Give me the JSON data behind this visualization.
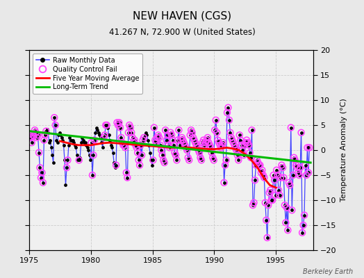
{
  "title": "NEW HAVEN (CGS)",
  "subtitle": "41.267 N, 72.900 W (United States)",
  "ylabel": "Temperature Anomaly (°C)",
  "attribution": "Berkeley Earth",
  "xlim": [
    1975,
    1998
  ],
  "ylim": [
    -20,
    20
  ],
  "yticks": [
    -20,
    -15,
    -10,
    -5,
    0,
    5,
    10,
    15,
    20
  ],
  "xticks": [
    1975,
    1980,
    1985,
    1990,
    1995
  ],
  "fig_facecolor": "#e8e8e8",
  "plot_facecolor": "#f0f0f0",
  "raw_color": "#4444ff",
  "dot_color": "#000000",
  "qc_color": "#ff44ff",
  "moving_avg_color": "#ff0000",
  "trend_color": "#00bb00",
  "grid_color": "#cccccc",
  "raw_monthly": [
    [
      1975.042,
      3.2
    ],
    [
      1975.125,
      2.5
    ],
    [
      1975.208,
      1.5
    ],
    [
      1975.292,
      3.0
    ],
    [
      1975.375,
      2.8
    ],
    [
      1975.458,
      4.0
    ],
    [
      1975.542,
      3.5
    ],
    [
      1975.625,
      2.5
    ],
    [
      1975.708,
      3.0
    ],
    [
      1975.792,
      -0.5
    ],
    [
      1975.875,
      -3.5
    ],
    [
      1975.958,
      -5.5
    ],
    [
      1976.042,
      -4.5
    ],
    [
      1976.125,
      -6.5
    ],
    [
      1976.208,
      2.0
    ],
    [
      1976.292,
      3.0
    ],
    [
      1976.375,
      3.8
    ],
    [
      1976.458,
      4.2
    ],
    [
      1976.542,
      3.5
    ],
    [
      1976.625,
      1.5
    ],
    [
      1976.708,
      2.0
    ],
    [
      1976.792,
      0.5
    ],
    [
      1976.875,
      -1.0
    ],
    [
      1976.958,
      -2.5
    ],
    [
      1977.042,
      6.5
    ],
    [
      1977.125,
      5.0
    ],
    [
      1977.208,
      2.0
    ],
    [
      1977.292,
      1.5
    ],
    [
      1977.375,
      3.0
    ],
    [
      1977.458,
      3.5
    ],
    [
      1977.542,
      3.0
    ],
    [
      1977.625,
      2.5
    ],
    [
      1977.708,
      2.0
    ],
    [
      1977.792,
      1.0
    ],
    [
      1977.875,
      -2.0
    ],
    [
      1977.958,
      -7.0
    ],
    [
      1978.042,
      -3.5
    ],
    [
      1978.125,
      -2.0
    ],
    [
      1978.208,
      1.0
    ],
    [
      1978.292,
      2.5
    ],
    [
      1978.375,
      2.0
    ],
    [
      1978.458,
      2.0
    ],
    [
      1978.542,
      2.0
    ],
    [
      1978.625,
      1.5
    ],
    [
      1978.708,
      1.0
    ],
    [
      1978.792,
      0.5
    ],
    [
      1978.875,
      -1.0
    ],
    [
      1978.958,
      -2.0
    ],
    [
      1979.042,
      -2.0
    ],
    [
      1979.125,
      -1.5
    ],
    [
      1979.208,
      1.5
    ],
    [
      1979.292,
      2.5
    ],
    [
      1979.375,
      2.0
    ],
    [
      1979.458,
      1.5
    ],
    [
      1979.542,
      1.5
    ],
    [
      1979.625,
      1.0
    ],
    [
      1979.708,
      0.5
    ],
    [
      1979.792,
      0.0
    ],
    [
      1979.875,
      -1.0
    ],
    [
      1979.958,
      -2.0
    ],
    [
      1980.042,
      1.5
    ],
    [
      1980.125,
      -5.0
    ],
    [
      1980.208,
      -1.0
    ],
    [
      1980.292,
      2.0
    ],
    [
      1980.375,
      3.5
    ],
    [
      1980.458,
      4.5
    ],
    [
      1980.542,
      4.0
    ],
    [
      1980.625,
      3.5
    ],
    [
      1980.708,
      3.0
    ],
    [
      1980.792,
      2.5
    ],
    [
      1980.875,
      1.5
    ],
    [
      1980.958,
      0.5
    ],
    [
      1981.042,
      2.5
    ],
    [
      1981.125,
      3.0
    ],
    [
      1981.208,
      5.0
    ],
    [
      1981.292,
      5.0
    ],
    [
      1981.375,
      4.5
    ],
    [
      1981.458,
      3.0
    ],
    [
      1981.542,
      2.0
    ],
    [
      1981.625,
      1.0
    ],
    [
      1981.708,
      0.5
    ],
    [
      1981.792,
      -0.5
    ],
    [
      1981.875,
      -2.5
    ],
    [
      1981.958,
      -3.5
    ],
    [
      1982.042,
      -3.0
    ],
    [
      1982.125,
      5.5
    ],
    [
      1982.208,
      5.0
    ],
    [
      1982.292,
      5.5
    ],
    [
      1982.375,
      4.5
    ],
    [
      1982.458,
      2.5
    ],
    [
      1982.542,
      1.5
    ],
    [
      1982.625,
      1.0
    ],
    [
      1982.708,
      1.0
    ],
    [
      1982.792,
      0.5
    ],
    [
      1982.875,
      -4.5
    ],
    [
      1982.958,
      -5.5
    ],
    [
      1983.042,
      3.5
    ],
    [
      1983.125,
      5.0
    ],
    [
      1983.208,
      4.5
    ],
    [
      1983.292,
      3.5
    ],
    [
      1983.375,
      2.5
    ],
    [
      1983.458,
      1.5
    ],
    [
      1983.542,
      2.0
    ],
    [
      1983.625,
      1.0
    ],
    [
      1983.708,
      0.5
    ],
    [
      1983.792,
      -0.5
    ],
    [
      1983.875,
      -2.0
    ],
    [
      1983.958,
      -3.0
    ],
    [
      1984.042,
      1.0
    ],
    [
      1984.125,
      -1.0
    ],
    [
      1984.208,
      2.0
    ],
    [
      1984.292,
      2.5
    ],
    [
      1984.375,
      3.0
    ],
    [
      1984.458,
      3.5
    ],
    [
      1984.542,
      3.0
    ],
    [
      1984.625,
      2.0
    ],
    [
      1984.708,
      1.0
    ],
    [
      1984.792,
      -0.5
    ],
    [
      1984.875,
      -2.0
    ],
    [
      1984.958,
      -3.0
    ],
    [
      1985.042,
      -2.0
    ],
    [
      1985.125,
      4.5
    ],
    [
      1985.208,
      2.0
    ],
    [
      1985.292,
      1.5
    ],
    [
      1985.375,
      2.5
    ],
    [
      1985.458,
      3.0
    ],
    [
      1985.542,
      2.5
    ],
    [
      1985.625,
      1.0
    ],
    [
      1985.708,
      0.0
    ],
    [
      1985.792,
      -1.0
    ],
    [
      1985.875,
      -2.0
    ],
    [
      1985.958,
      -2.5
    ],
    [
      1986.042,
      4.0
    ],
    [
      1986.125,
      2.0
    ],
    [
      1986.208,
      3.0
    ],
    [
      1986.292,
      1.0
    ],
    [
      1986.375,
      0.5
    ],
    [
      1986.458,
      3.5
    ],
    [
      1986.542,
      3.0
    ],
    [
      1986.625,
      2.0
    ],
    [
      1986.708,
      1.0
    ],
    [
      1986.792,
      -0.5
    ],
    [
      1986.875,
      -1.0
    ],
    [
      1986.958,
      -2.0
    ],
    [
      1987.042,
      2.0
    ],
    [
      1987.125,
      4.0
    ],
    [
      1987.208,
      1.0
    ],
    [
      1987.292,
      2.0
    ],
    [
      1987.375,
      2.5
    ],
    [
      1987.458,
      2.0
    ],
    [
      1987.542,
      1.5
    ],
    [
      1987.625,
      1.0
    ],
    [
      1987.708,
      0.5
    ],
    [
      1987.792,
      0.0
    ],
    [
      1987.875,
      -1.5
    ],
    [
      1987.958,
      -2.0
    ],
    [
      1988.042,
      3.0
    ],
    [
      1988.125,
      4.0
    ],
    [
      1988.208,
      3.5
    ],
    [
      1988.292,
      2.5
    ],
    [
      1988.375,
      2.0
    ],
    [
      1988.458,
      1.5
    ],
    [
      1988.542,
      1.0
    ],
    [
      1988.625,
      0.5
    ],
    [
      1988.708,
      0.0
    ],
    [
      1988.792,
      -0.5
    ],
    [
      1988.875,
      -1.5
    ],
    [
      1988.958,
      -2.0
    ],
    [
      1989.042,
      1.5
    ],
    [
      1989.125,
      2.0
    ],
    [
      1989.208,
      1.0
    ],
    [
      1989.292,
      1.5
    ],
    [
      1989.375,
      2.0
    ],
    [
      1989.458,
      2.5
    ],
    [
      1989.542,
      1.5
    ],
    [
      1989.625,
      1.0
    ],
    [
      1989.708,
      0.5
    ],
    [
      1989.792,
      -0.5
    ],
    [
      1989.875,
      -1.5
    ],
    [
      1989.958,
      -2.0
    ],
    [
      1990.042,
      4.0
    ],
    [
      1990.125,
      6.0
    ],
    [
      1990.208,
      3.5
    ],
    [
      1990.292,
      2.0
    ],
    [
      1990.375,
      1.5
    ],
    [
      1990.458,
      1.0
    ],
    [
      1990.542,
      0.5
    ],
    [
      1990.625,
      1.0
    ],
    [
      1990.708,
      1.5
    ],
    [
      1990.792,
      -6.5
    ],
    [
      1990.875,
      -3.0
    ],
    [
      1990.958,
      -2.0
    ],
    [
      1991.042,
      7.5
    ],
    [
      1991.125,
      8.5
    ],
    [
      1991.208,
      6.0
    ],
    [
      1991.292,
      3.5
    ],
    [
      1991.375,
      2.5
    ],
    [
      1991.458,
      2.0
    ],
    [
      1991.542,
      1.5
    ],
    [
      1991.625,
      1.0
    ],
    [
      1991.708,
      0.5
    ],
    [
      1991.792,
      0.0
    ],
    [
      1991.875,
      -1.0
    ],
    [
      1991.958,
      -2.0
    ],
    [
      1992.042,
      3.0
    ],
    [
      1992.125,
      2.0
    ],
    [
      1992.208,
      1.0
    ],
    [
      1992.292,
      0.0
    ],
    [
      1992.375,
      -1.0
    ],
    [
      1992.458,
      1.0
    ],
    [
      1992.542,
      1.5
    ],
    [
      1992.625,
      2.0
    ],
    [
      1992.708,
      1.5
    ],
    [
      1992.792,
      1.0
    ],
    [
      1992.875,
      -0.5
    ],
    [
      1992.958,
      -1.5
    ],
    [
      1993.042,
      4.0
    ],
    [
      1993.125,
      -11.0
    ],
    [
      1993.208,
      -10.5
    ],
    [
      1993.292,
      -6.0
    ],
    [
      1993.375,
      -3.0
    ],
    [
      1993.458,
      -2.0
    ],
    [
      1993.542,
      -2.5
    ],
    [
      1993.625,
      -3.0
    ],
    [
      1993.708,
      -3.0
    ],
    [
      1993.792,
      -4.5
    ],
    [
      1993.875,
      -4.0
    ],
    [
      1993.958,
      -5.0
    ],
    [
      1994.042,
      -5.5
    ],
    [
      1994.125,
      -10.5
    ],
    [
      1994.208,
      -14.0
    ],
    [
      1994.292,
      -17.5
    ],
    [
      1994.375,
      -11.0
    ],
    [
      1994.458,
      -8.5
    ],
    [
      1994.542,
      -8.0
    ],
    [
      1994.625,
      -10.0
    ],
    [
      1994.708,
      -10.0
    ],
    [
      1994.792,
      -5.0
    ],
    [
      1994.875,
      -6.0
    ],
    [
      1994.958,
      -9.0
    ],
    [
      1995.042,
      -4.0
    ],
    [
      1995.125,
      -5.0
    ],
    [
      1995.208,
      -8.0
    ],
    [
      1995.292,
      -9.0
    ],
    [
      1995.375,
      -5.5
    ],
    [
      1995.458,
      -3.0
    ],
    [
      1995.542,
      -3.5
    ],
    [
      1995.625,
      -5.5
    ],
    [
      1995.708,
      -11.0
    ],
    [
      1995.792,
      -14.5
    ],
    [
      1995.875,
      -11.5
    ],
    [
      1995.958,
      -16.0
    ],
    [
      1996.042,
      -6.5
    ],
    [
      1996.125,
      -7.0
    ],
    [
      1996.208,
      4.5
    ],
    [
      1996.292,
      -12.0
    ],
    [
      1996.375,
      -5.0
    ],
    [
      1996.458,
      -1.5
    ],
    [
      1996.542,
      -2.0
    ],
    [
      1996.625,
      -3.0
    ],
    [
      1996.708,
      -3.5
    ],
    [
      1996.792,
      -4.5
    ],
    [
      1996.875,
      -5.0
    ],
    [
      1996.958,
      -3.5
    ],
    [
      1997.042,
      3.5
    ],
    [
      1997.125,
      -16.5
    ],
    [
      1997.208,
      -15.0
    ],
    [
      1997.292,
      -13.0
    ],
    [
      1997.375,
      -3.0
    ],
    [
      1997.458,
      -5.0
    ],
    [
      1997.542,
      0.5
    ],
    [
      1997.625,
      -4.5
    ],
    [
      1997.708,
      0.5
    ]
  ],
  "qc_fail_x": [
    1975.042,
    1975.125,
    1975.208,
    1975.292,
    1975.375,
    1975.458,
    1975.542,
    1975.625,
    1975.708,
    1975.792,
    1975.875,
    1975.958,
    1976.042,
    1976.125,
    1976.208,
    1976.292,
    1976.375,
    1977.042,
    1977.125,
    1978.042,
    1978.125,
    1979.042,
    1980.042,
    1980.125,
    1980.208,
    1980.292,
    1981.042,
    1981.125,
    1981.208,
    1981.292,
    1982.042,
    1982.125,
    1982.208,
    1982.292,
    1982.375,
    1982.458,
    1982.542,
    1982.625,
    1982.708,
    1982.792,
    1982.875,
    1982.958,
    1983.042,
    1983.125,
    1983.208,
    1983.292,
    1983.375,
    1983.458,
    1983.542,
    1983.625,
    1983.708,
    1983.792,
    1983.875,
    1983.958,
    1984.042,
    1984.125,
    1984.208,
    1984.292,
    1985.042,
    1985.125,
    1985.208,
    1985.292,
    1985.375,
    1985.458,
    1985.542,
    1985.625,
    1985.708,
    1985.792,
    1985.875,
    1985.958,
    1986.042,
    1986.125,
    1986.208,
    1986.292,
    1986.375,
    1986.458,
    1986.542,
    1986.625,
    1986.708,
    1986.792,
    1986.875,
    1986.958,
    1987.042,
    1987.125,
    1987.208,
    1987.292,
    1987.375,
    1987.458,
    1987.542,
    1987.625,
    1987.708,
    1987.792,
    1987.875,
    1987.958,
    1988.042,
    1988.125,
    1988.208,
    1988.292,
    1988.375,
    1988.458,
    1988.542,
    1988.625,
    1988.708,
    1988.792,
    1988.875,
    1988.958,
    1989.042,
    1989.125,
    1989.208,
    1989.292,
    1989.375,
    1989.458,
    1989.542,
    1989.625,
    1989.708,
    1989.792,
    1989.875,
    1989.958,
    1990.042,
    1990.125,
    1990.208,
    1990.292,
    1990.375,
    1990.458,
    1990.542,
    1990.625,
    1990.708,
    1990.792,
    1990.875,
    1990.958,
    1991.042,
    1991.125,
    1991.208,
    1991.292,
    1991.375,
    1991.458,
    1991.542,
    1991.625,
    1991.708,
    1991.792,
    1991.875,
    1991.958,
    1992.042,
    1992.125,
    1992.208,
    1992.292,
    1992.375,
    1992.458,
    1992.542,
    1992.625,
    1992.708,
    1992.792,
    1992.875,
    1992.958,
    1993.042,
    1993.125,
    1993.208,
    1993.292,
    1993.375,
    1993.458,
    1993.542,
    1993.625,
    1993.708,
    1993.792,
    1993.875,
    1993.958,
    1994.042,
    1994.125,
    1994.208,
    1994.292,
    1994.375,
    1994.458,
    1994.542,
    1994.625,
    1994.708,
    1994.792,
    1994.875,
    1994.958,
    1995.042,
    1995.125,
    1995.208,
    1995.292,
    1995.375,
    1995.458,
    1995.542,
    1995.625,
    1995.708,
    1995.792,
    1995.875,
    1995.958,
    1996.042,
    1996.125,
    1996.208,
    1996.292,
    1996.375,
    1996.458,
    1996.542,
    1996.625,
    1996.708,
    1996.792,
    1996.875,
    1996.958,
    1997.042,
    1997.125,
    1997.208,
    1997.292,
    1997.375,
    1997.458,
    1997.542,
    1997.625,
    1997.708
  ],
  "qc_fail_y": [
    3.2,
    2.5,
    1.5,
    3.0,
    2.8,
    4.0,
    3.5,
    2.5,
    3.0,
    -0.5,
    -3.5,
    -5.5,
    -4.5,
    -6.5,
    2.0,
    3.0,
    3.8,
    6.5,
    5.0,
    -3.5,
    -2.0,
    -2.0,
    1.5,
    -5.0,
    -1.0,
    2.0,
    2.5,
    3.0,
    5.0,
    5.0,
    -3.0,
    5.5,
    5.0,
    5.5,
    4.5,
    2.5,
    1.5,
    1.0,
    1.0,
    0.5,
    -4.5,
    -5.5,
    3.5,
    5.0,
    4.5,
    3.5,
    2.5,
    1.5,
    2.0,
    1.0,
    0.5,
    -0.5,
    -2.0,
    -3.0,
    1.0,
    -1.0,
    2.0,
    2.5,
    -2.0,
    4.5,
    2.0,
    1.5,
    2.5,
    3.0,
    2.5,
    1.0,
    0.0,
    -1.0,
    -2.0,
    -2.5,
    4.0,
    2.0,
    3.0,
    1.0,
    0.5,
    3.5,
    3.0,
    2.0,
    1.0,
    -0.5,
    -1.0,
    -2.0,
    2.0,
    4.0,
    1.0,
    2.0,
    2.5,
    2.0,
    1.5,
    1.0,
    0.5,
    0.0,
    -1.5,
    -2.0,
    3.0,
    4.0,
    3.5,
    2.5,
    2.0,
    1.5,
    1.0,
    0.5,
    0.0,
    -0.5,
    -1.5,
    -2.0,
    1.5,
    2.0,
    1.0,
    1.5,
    2.0,
    2.5,
    1.5,
    1.0,
    0.5,
    -0.5,
    -1.5,
    -2.0,
    4.0,
    6.0,
    3.5,
    2.0,
    1.5,
    1.0,
    0.5,
    1.0,
    1.5,
    -6.5,
    -3.0,
    -2.0,
    7.5,
    8.5,
    6.0,
    3.5,
    2.5,
    2.0,
    1.5,
    1.0,
    0.5,
    0.0,
    -1.0,
    -2.0,
    3.0,
    2.0,
    1.0,
    0.0,
    -1.0,
    1.0,
    1.5,
    2.0,
    1.5,
    1.0,
    -0.5,
    -1.5,
    4.0,
    -11.0,
    -10.5,
    -6.0,
    -3.0,
    -2.0,
    -2.5,
    -3.0,
    -3.0,
    -4.5,
    -4.0,
    -5.0,
    -5.5,
    -10.5,
    -14.0,
    -17.5,
    -11.0,
    -8.5,
    -8.0,
    -10.0,
    -10.0,
    -5.0,
    -6.0,
    -9.0,
    -4.0,
    -5.0,
    -8.0,
    -9.0,
    -5.5,
    -3.0,
    -3.5,
    -5.5,
    -11.0,
    -14.5,
    -11.5,
    -16.0,
    -6.5,
    -7.0,
    4.5,
    -12.0,
    -5.0,
    -1.5,
    -2.0,
    -3.0,
    -3.5,
    -4.5,
    -5.0,
    -3.5,
    3.5,
    -16.5,
    -15.0,
    -13.0,
    -3.0,
    -5.0,
    0.5,
    -4.5,
    0.5
  ],
  "moving_avg": [
    [
      1977.5,
      1.8
    ],
    [
      1978.0,
      1.5
    ],
    [
      1978.5,
      1.2
    ],
    [
      1979.0,
      1.0
    ],
    [
      1979.5,
      1.0
    ],
    [
      1980.0,
      1.0
    ],
    [
      1980.5,
      1.2
    ],
    [
      1981.0,
      1.4
    ],
    [
      1981.5,
      1.5
    ],
    [
      1982.0,
      1.4
    ],
    [
      1982.5,
      1.3
    ],
    [
      1983.0,
      1.2
    ],
    [
      1983.5,
      1.1
    ],
    [
      1984.0,
      1.0
    ],
    [
      1984.5,
      0.9
    ],
    [
      1985.0,
      0.8
    ],
    [
      1985.5,
      0.7
    ],
    [
      1986.0,
      0.6
    ],
    [
      1986.5,
      0.5
    ],
    [
      1987.0,
      0.5
    ],
    [
      1987.5,
      0.5
    ],
    [
      1988.0,
      0.5
    ],
    [
      1988.5,
      0.4
    ],
    [
      1989.0,
      0.3
    ],
    [
      1989.5,
      0.2
    ],
    [
      1990.0,
      0.2
    ],
    [
      1990.5,
      0.3
    ],
    [
      1991.0,
      0.5
    ],
    [
      1991.5,
      0.3
    ],
    [
      1992.0,
      0.0
    ],
    [
      1992.5,
      -0.8
    ],
    [
      1993.0,
      -2.0
    ],
    [
      1993.5,
      -3.5
    ],
    [
      1994.0,
      -5.5
    ],
    [
      1994.5,
      -7.0
    ],
    [
      1995.0,
      -7.5
    ]
  ],
  "trend_x": [
    1975.0,
    1997.8
  ],
  "trend_y": [
    3.8,
    -2.5
  ]
}
